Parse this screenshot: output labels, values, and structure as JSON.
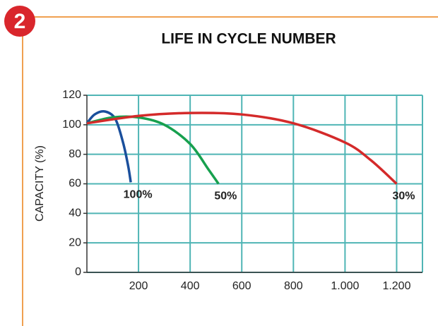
{
  "badge": "2",
  "chart_data": {
    "type": "line",
    "title": "LIFE IN CYCLE NUMBER",
    "y_label": "CAPACITY (%)",
    "xlim": [
      0,
      1300
    ],
    "ylim": [
      0,
      120
    ],
    "xticks": [
      200,
      400,
      600,
      800,
      {
        "value": 1000,
        "label": "1.000"
      },
      {
        "value": 1200,
        "label": "1.200"
      }
    ],
    "yticks": [
      0,
      20,
      40,
      60,
      80,
      100,
      120
    ],
    "grid": true,
    "series": [
      {
        "name": "100%",
        "color": "#1a4f9c",
        "x": [
          0,
          30,
          70,
          110,
          140,
          160,
          170
        ],
        "values": [
          101,
          107,
          109,
          104,
          88,
          72,
          61
        ]
      },
      {
        "name": "50%",
        "color": "#17a04e",
        "x": [
          0,
          100,
          200,
          300,
          400,
          470,
          510
        ],
        "values": [
          101,
          105,
          105,
          100,
          87,
          70,
          60
        ]
      },
      {
        "name": "30%",
        "color": "#d42a2a",
        "x": [
          0,
          200,
          400,
          600,
          800,
          1000,
          1100,
          1200
        ],
        "values": [
          101,
          106,
          108,
          107,
          101,
          88,
          76,
          60
        ]
      }
    ]
  }
}
